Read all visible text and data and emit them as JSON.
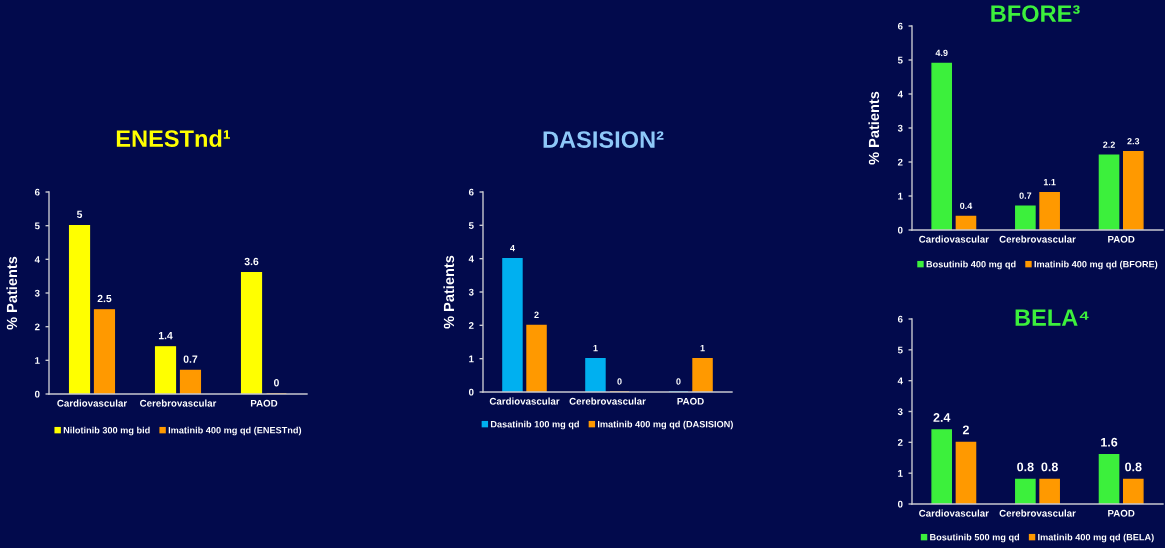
{
  "chart_data": [
    {
      "type": "bar",
      "title": "ENESTnd¹",
      "ylabel": "% Patients",
      "categories": [
        "Cardiovascular",
        "Cerebrovascular",
        "PAOD"
      ],
      "series": [
        {
          "name": "Nilotinib 300 mg bid",
          "color": "#ffff00",
          "values": [
            5,
            1.4,
            3.6
          ]
        },
        {
          "name": "Imatinib 400 mg qd (ENESTnd)",
          "color": "#ff9900",
          "values": [
            2.5,
            0.7,
            0
          ]
        }
      ],
      "ylim": [
        0,
        6
      ],
      "yticks": [
        0,
        1,
        2,
        3,
        4,
        5,
        6
      ],
      "data_labels": true,
      "legend": "bottom"
    },
    {
      "type": "bar",
      "title": "DASISION²",
      "ylabel": "% Patients",
      "categories": [
        "Cardiovascular",
        "Cerebrovascular",
        "PAOD"
      ],
      "series": [
        {
          "name": "Dasatinib 100 mg qd",
          "color": "#00b0f0",
          "values": [
            4,
            1,
            0
          ]
        },
        {
          "name": "Imatinib 400 mg qd (DASISION)",
          "color": "#ff9900",
          "values": [
            2,
            0,
            1
          ]
        }
      ],
      "ylim": [
        0,
        6
      ],
      "yticks": [
        0,
        1,
        2,
        3,
        4,
        5,
        6
      ],
      "data_labels": true,
      "legend": "bottom"
    },
    {
      "type": "bar",
      "title": "BFORE³",
      "ylabel": "% Patients",
      "categories": [
        "Cardiovascular",
        "Cerebrovascular",
        "PAOD"
      ],
      "series": [
        {
          "name": "Bosutinib 400 mg qd",
          "color": "#3cf03c",
          "values": [
            4.9,
            0.7,
            2.2
          ]
        },
        {
          "name": "Imatinib 400 mg qd (BFORE)",
          "color": "#ff9900",
          "values": [
            0.4,
            1.1,
            2.3
          ]
        }
      ],
      "ylim": [
        0,
        6
      ],
      "yticks": [
        0,
        1,
        2,
        3,
        4,
        5,
        6
      ],
      "data_labels": true,
      "legend": "bottom"
    },
    {
      "type": "bar",
      "title": "BELA⁴",
      "categories": [
        "Cardiovascular",
        "Cerebrovascular",
        "PAOD"
      ],
      "series": [
        {
          "name": "Bosutinib 500 mg qd",
          "color": "#3cf03c",
          "values": [
            2.4,
            0.8,
            1.6
          ]
        },
        {
          "name": "Imatinib 400 mg qd (BELA)",
          "color": "#ff9900",
          "values": [
            2,
            0.8,
            0.8
          ]
        }
      ],
      "ylim": [
        0,
        6
      ],
      "yticks": [
        0,
        1,
        2,
        3,
        4,
        5,
        6
      ],
      "data_labels": true,
      "legend": "bottom"
    }
  ]
}
